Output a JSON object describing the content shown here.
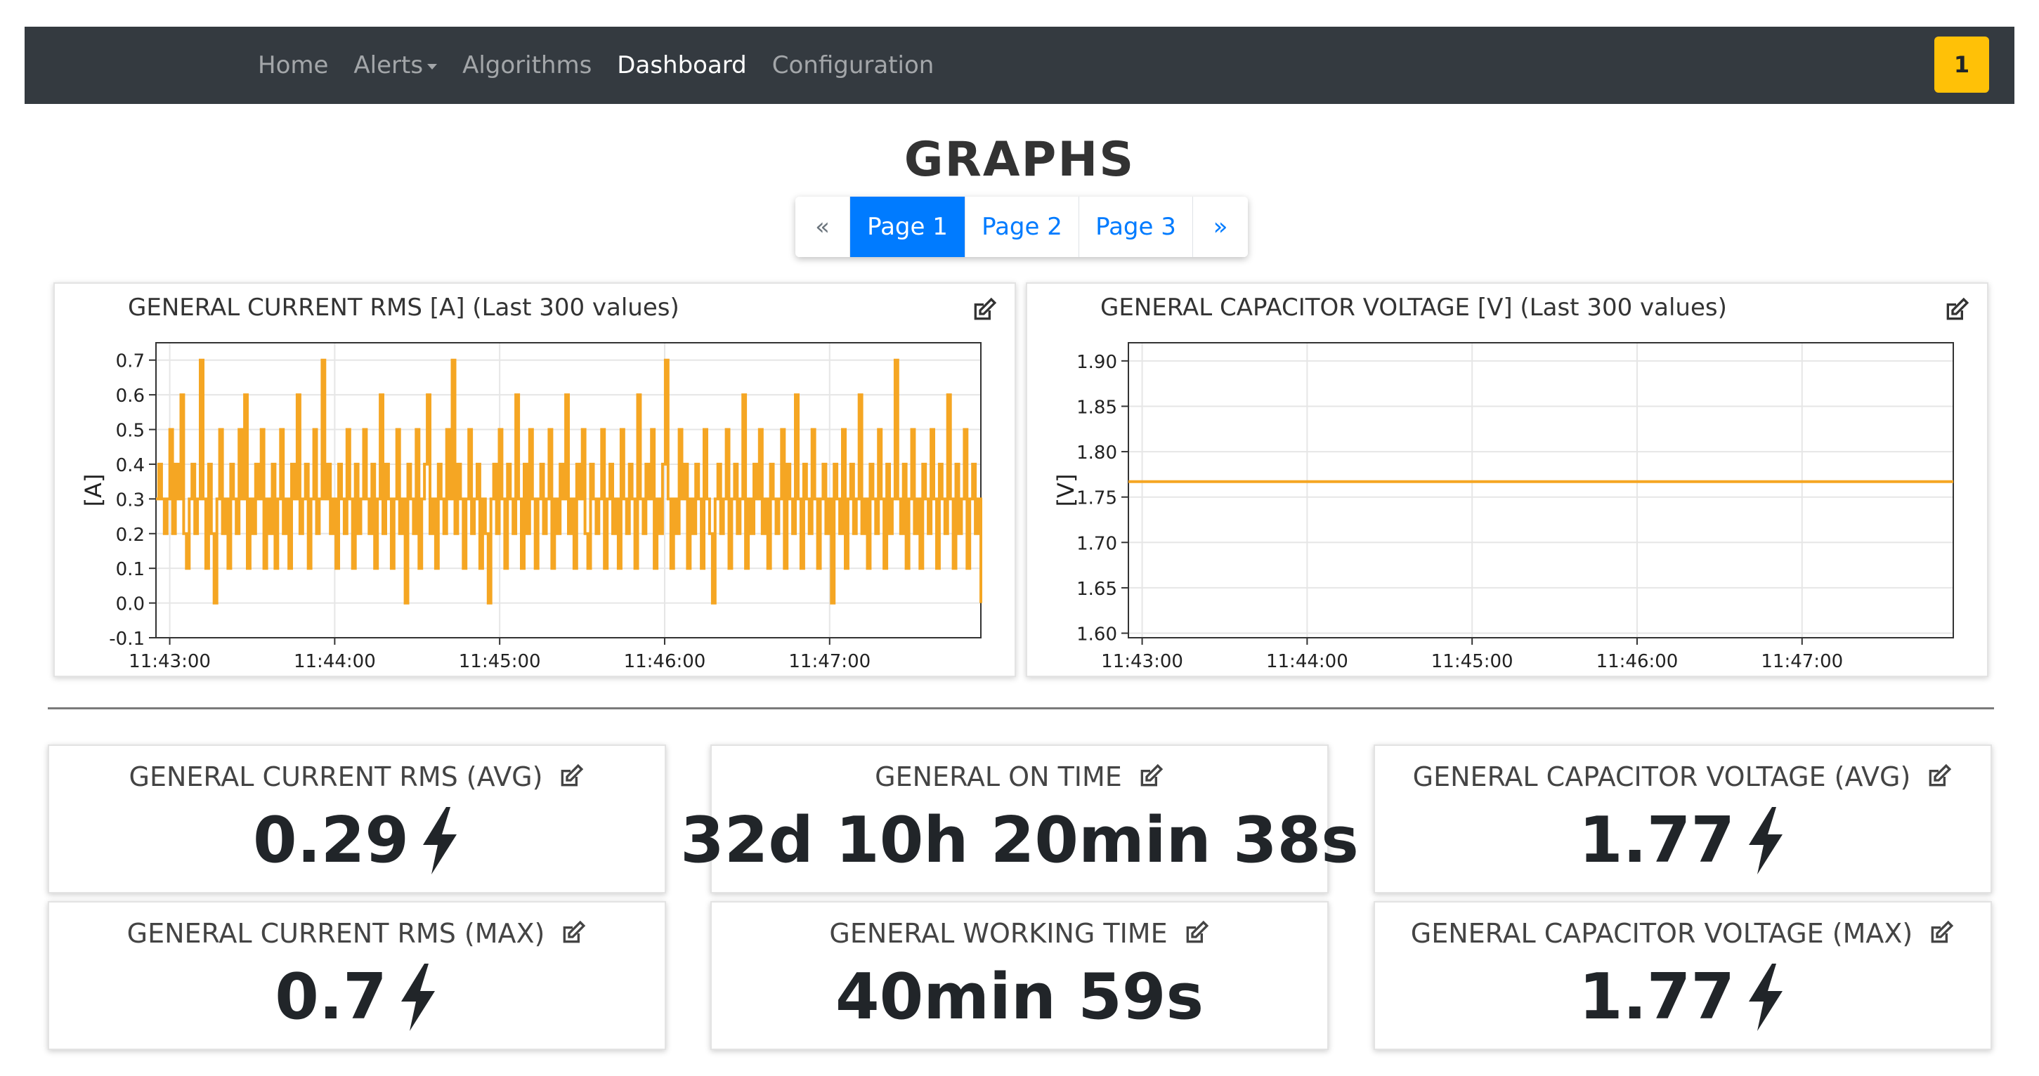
{
  "navbar": {
    "links": [
      {
        "label": "Home",
        "active": false
      },
      {
        "label": "Alerts",
        "active": false,
        "dropdown": true
      },
      {
        "label": "Algorithms",
        "active": false
      },
      {
        "label": "Dashboard",
        "active": true
      },
      {
        "label": "Configuration",
        "active": false
      }
    ],
    "notification_count": "1"
  },
  "page_title": "GRAPHS",
  "pagination": {
    "prev": "«",
    "pages": [
      "Page 1",
      "Page 2",
      "Page 3"
    ],
    "active_page": "Page 1",
    "next": "»"
  },
  "colors": {
    "accent": "#007bff",
    "series": "#f5a623",
    "navbar_bg": "#343a40",
    "badge": "#ffc107"
  },
  "icons": {
    "edit": "edit-icon",
    "bolt": "bolt-icon"
  },
  "chart_data": [
    {
      "type": "line",
      "title": "GENERAL CURRENT RMS [A] (Last 300 values)",
      "xlabel": "",
      "ylabel": "[A]",
      "x_ticks": [
        "11:43:00",
        "11:44:00",
        "11:45:00",
        "11:46:00",
        "11:47:00"
      ],
      "y_ticks": [
        "-0.1",
        "0.0",
        "0.1",
        "0.2",
        "0.3",
        "0.4",
        "0.5",
        "0.6",
        "0.7"
      ],
      "ylim": [
        -0.1,
        0.75
      ],
      "xlim": [
        "11:42:55",
        "11:47:55"
      ],
      "grid": true,
      "series": [
        {
          "color": "#f5a623",
          "values": [
            0.3,
            0.4,
            0.3,
            0.2,
            0.3,
            0.5,
            0.2,
            0.4,
            0.3,
            0.6,
            0.2,
            0.1,
            0.3,
            0.4,
            0.2,
            0.3,
            0.7,
            0.3,
            0.1,
            0.4,
            0.2,
            0.0,
            0.3,
            0.5,
            0.2,
            0.3,
            0.1,
            0.4,
            0.3,
            0.2,
            0.5,
            0.3,
            0.6,
            0.1,
            0.3,
            0.2,
            0.4,
            0.3,
            0.5,
            0.1,
            0.3,
            0.2,
            0.4,
            0.1,
            0.3,
            0.5,
            0.2,
            0.3,
            0.1,
            0.4,
            0.3,
            0.6,
            0.2,
            0.3,
            0.4,
            0.1,
            0.3,
            0.5,
            0.2,
            0.3,
            0.7,
            0.3,
            0.4,
            0.2,
            0.3,
            0.1,
            0.4,
            0.3,
            0.2,
            0.5,
            0.3,
            0.1,
            0.4,
            0.2,
            0.3,
            0.5,
            0.3,
            0.2,
            0.4,
            0.1,
            0.3,
            0.6,
            0.2,
            0.4,
            0.3,
            0.1,
            0.3,
            0.5,
            0.2,
            0.3,
            0.0,
            0.4,
            0.3,
            0.2,
            0.5,
            0.1,
            0.3,
            0.4,
            0.6,
            0.2,
            0.3,
            0.1,
            0.4,
            0.3,
            0.2,
            0.5,
            0.3,
            0.7,
            0.2,
            0.4,
            0.3,
            0.1,
            0.3,
            0.5,
            0.2,
            0.3,
            0.4,
            0.1,
            0.3,
            0.2,
            0.0,
            0.3,
            0.4,
            0.2,
            0.5,
            0.3,
            0.1,
            0.4,
            0.3,
            0.2,
            0.6,
            0.3,
            0.1,
            0.4,
            0.2,
            0.5,
            0.3,
            0.1,
            0.3,
            0.4,
            0.2,
            0.3,
            0.5,
            0.1,
            0.3,
            0.2,
            0.4,
            0.3,
            0.6,
            0.2,
            0.3,
            0.1,
            0.4,
            0.3,
            0.5,
            0.2,
            0.1,
            0.4,
            0.3,
            0.2,
            0.3,
            0.5,
            0.1,
            0.3,
            0.4,
            0.2,
            0.3,
            0.1,
            0.5,
            0.3,
            0.2,
            0.4,
            0.3,
            0.1,
            0.6,
            0.3,
            0.2,
            0.4,
            0.3,
            0.5,
            0.1,
            0.3,
            0.2,
            0.4,
            0.7,
            0.3,
            0.1,
            0.3,
            0.2,
            0.5,
            0.3,
            0.4,
            0.1,
            0.3,
            0.2,
            0.4,
            0.3,
            0.1,
            0.5,
            0.3,
            0.2,
            0.0,
            0.3,
            0.4,
            0.2,
            0.3,
            0.5,
            0.1,
            0.3,
            0.4,
            0.2,
            0.3,
            0.6,
            0.1,
            0.3,
            0.2,
            0.4,
            0.3,
            0.5,
            0.2,
            0.3,
            0.1,
            0.4,
            0.3,
            0.2,
            0.3,
            0.5,
            0.1,
            0.4,
            0.3,
            0.2,
            0.6,
            0.3,
            0.1,
            0.4,
            0.3,
            0.2,
            0.5,
            0.3,
            0.1,
            0.3,
            0.4,
            0.2,
            0.3,
            0.0,
            0.4,
            0.3,
            0.2,
            0.5,
            0.1,
            0.3,
            0.4,
            0.2,
            0.3,
            0.6,
            0.2,
            0.3,
            0.1,
            0.4,
            0.3,
            0.2,
            0.5,
            0.3,
            0.1,
            0.4,
            0.2,
            0.3,
            0.7,
            0.3,
            0.2,
            0.4,
            0.1,
            0.3,
            0.5,
            0.2,
            0.3,
            0.1,
            0.4,
            0.3,
            0.2,
            0.5,
            0.3,
            0.1,
            0.4,
            0.3,
            0.2,
            0.6,
            0.3,
            0.1,
            0.4,
            0.2,
            0.3,
            0.5,
            0.1,
            0.3,
            0.4,
            0.2,
            0.3,
            0.0
          ]
        }
      ]
    },
    {
      "type": "line",
      "title": "GENERAL CAPACITOR VOLTAGE [V] (Last 300 values)",
      "xlabel": "",
      "ylabel": "[V]",
      "x_ticks": [
        "11:43:00",
        "11:44:00",
        "11:45:00",
        "11:46:00",
        "11:47:00"
      ],
      "y_ticks": [
        "1.60",
        "1.65",
        "1.70",
        "1.75",
        "1.80",
        "1.85",
        "1.90"
      ],
      "ylim": [
        1.595,
        1.92
      ],
      "xlim": [
        "11:42:55",
        "11:47:55"
      ],
      "grid": true,
      "series": [
        {
          "color": "#f5a623",
          "values": [
            1.767,
            1.767
          ]
        }
      ]
    }
  ],
  "stats": [
    {
      "label": "GENERAL CURRENT RMS (AVG)",
      "value": "0.29",
      "bolt": true
    },
    {
      "label": "GENERAL ON TIME",
      "value": "32d 10h 20min 38s",
      "bolt": false
    },
    {
      "label": "GENERAL CAPACITOR VOLTAGE (AVG)",
      "value": "1.77",
      "bolt": true
    },
    {
      "label": "GENERAL CURRENT RMS (MAX)",
      "value": "0.7",
      "bolt": true
    },
    {
      "label": "GENERAL WORKING TIME",
      "value": "40min 59s",
      "bolt": false
    },
    {
      "label": "GENERAL CAPACITOR VOLTAGE (MAX)",
      "value": "1.77",
      "bolt": true
    }
  ]
}
